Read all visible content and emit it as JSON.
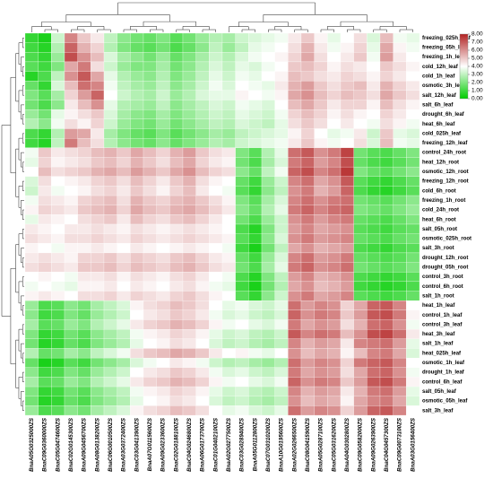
{
  "chart_data": {
    "type": "heatmap",
    "colors": [
      "#00cc00",
      "#ffffff",
      "#b22222"
    ],
    "zlim": [
      0,
      8
    ],
    "colorbar_ticks": [
      {
        "value": 0,
        "label": "0.00"
      },
      {
        "value": 1,
        "label": "1.00"
      },
      {
        "value": 2,
        "label": "2.00"
      },
      {
        "value": 3,
        "label": "3.00"
      },
      {
        "value": 4,
        "label": "4.00"
      },
      {
        "value": 5,
        "label": "5.00"
      },
      {
        "value": 6,
        "label": "6.00"
      },
      {
        "value": 7,
        "label": "7.00"
      },
      {
        "value": 8,
        "label": "8.00"
      }
    ],
    "rows": [
      "freezing_025h_leaf",
      "freezing_05h_leaf",
      "freezing_1h_leaf",
      "cold_12h_leaf",
      "cold_1h_leaf",
      "osmotic_3h_leaf",
      "salt_12h_leaf",
      "salt_6h_leaf",
      "drought_6h_leaf",
      "heat_6h_leaf",
      "cold_025h_leaf",
      "freezing_12h_leaf",
      "control_24h_root",
      "heat_12h_root",
      "osmotic_12h_root",
      "freezing_12h_root",
      "cold_6h_root",
      "freezing_1h_root",
      "cold_24h_root",
      "heat_6h_root",
      "salt_05h_root",
      "osmotic_025h_root",
      "salt_3h_root",
      "drought_12h_root",
      "drought_05h_root",
      "control_3h_root",
      "control_6h_root",
      "salt_1h_root",
      "heat_1h_leaf",
      "control_1h_leaf",
      "control_3h_leaf",
      "heat_3h_leaf",
      "salt_1h_leaf",
      "heat_025h_leaf",
      "osmotic_1h_leaf",
      "drought_1h_leaf",
      "control_6h_leaf",
      "salt_05h_leaf",
      "osmotic_05h_leaf",
      "salt_3h_leaf"
    ],
    "columns": [
      "BnaA05G0325000ZS",
      "BnaC09G0360000ZS",
      "BnaC05G0474600ZS",
      "BnaC02G0145300ZS",
      "BnaA09G0456700ZS",
      "BnaA08G0138200ZS",
      "BnaC06G0010500ZS",
      "BnaA03G0372400ZS",
      "BnaC03G0413900ZS",
      "BnaA07G0115600ZS",
      "BnaA09G0233600ZS",
      "BnaC02G0188100ZS",
      "BnaC04G0246800ZS",
      "BnaA06G0173700ZS",
      "BnaC01G0402100ZS",
      "BnaA02G0277500ZS",
      "BnaC03G0289400ZS",
      "BnaA05G0112800ZS",
      "BnaC07G0310200ZS",
      "BnaA10G0195600ZS",
      "BnaA02G0266500ZS",
      "BnaC08G0415900ZS",
      "BnaA05G0287100ZS",
      "BnaC05G0316200ZS",
      "BnaA04G0302800ZS",
      "BnaC09G0582000ZS",
      "BnaA09G0263900ZS",
      "BnaC04G0457300ZS",
      "BnaC09G0073100ZS",
      "BnaA03G0156400ZS"
    ],
    "values": [
      [
        0.8,
        0.4,
        3.2,
        6.2,
        5.0,
        4.4,
        3.0,
        2.2,
        1.8,
        1.6,
        2.0,
        1.4,
        1.8,
        2.4,
        2.8,
        2.6,
        3.2,
        3.4,
        3.6,
        3.8,
        4.4,
        5.0,
        4.2,
        3.6,
        4.0,
        4.6,
        3.4,
        5.2,
        3.8,
        3.6
      ],
      [
        1.0,
        0.6,
        2.8,
        6.8,
        5.4,
        4.8,
        2.8,
        2.0,
        1.6,
        1.4,
        1.8,
        1.2,
        1.6,
        2.2,
        3.0,
        2.4,
        3.0,
        3.6,
        3.8,
        4.0,
        4.6,
        5.4,
        4.4,
        3.8,
        4.2,
        4.8,
        3.6,
        5.6,
        4.2,
        3.8
      ],
      [
        1.2,
        0.8,
        2.4,
        7.2,
        6.0,
        5.2,
        3.4,
        2.6,
        2.2,
        1.8,
        2.4,
        1.6,
        2.0,
        2.6,
        3.2,
        2.8,
        3.4,
        3.8,
        4.0,
        4.2,
        4.8,
        5.6,
        4.6,
        4.0,
        4.4,
        5.0,
        3.8,
        5.8,
        4.4,
        4.0
      ],
      [
        1.4,
        1.0,
        2.0,
        5.6,
        6.4,
        4.6,
        3.2,
        2.4,
        2.0,
        2.0,
        2.6,
        1.8,
        2.2,
        2.8,
        3.4,
        3.0,
        3.6,
        3.4,
        3.8,
        4.0,
        5.0,
        5.2,
        4.8,
        4.2,
        4.6,
        4.4,
        4.0,
        5.0,
        4.6,
        4.2
      ],
      [
        0.6,
        1.2,
        3.0,
        6.0,
        7.0,
        5.6,
        3.6,
        2.8,
        2.4,
        2.2,
        2.8,
        2.0,
        2.4,
        3.0,
        3.6,
        3.2,
        3.8,
        3.6,
        4.0,
        4.2,
        5.2,
        5.0,
        4.6,
        4.4,
        4.8,
        4.6,
        4.2,
        4.8,
        4.4,
        4.0
      ],
      [
        1.6,
        0.8,
        3.4,
        5.2,
        6.6,
        6.2,
        3.8,
        3.0,
        2.6,
        2.4,
        3.0,
        2.2,
        2.6,
        3.2,
        3.8,
        3.4,
        4.0,
        3.8,
        3.6,
        4.4,
        5.4,
        5.8,
        5.0,
        4.6,
        5.0,
        5.2,
        4.4,
        5.4,
        4.8,
        4.4
      ],
      [
        2.0,
        1.4,
        2.6,
        4.8,
        5.8,
        6.8,
        4.0,
        3.2,
        2.8,
        2.6,
        3.2,
        2.4,
        2.8,
        3.4,
        3.6,
        3.6,
        4.2,
        4.0,
        3.8,
        4.2,
        5.6,
        6.0,
        5.2,
        4.8,
        5.2,
        5.0,
        4.6,
        5.6,
        5.0,
        4.6
      ],
      [
        1.8,
        1.2,
        2.2,
        4.4,
        5.2,
        6.0,
        3.6,
        2.8,
        2.6,
        2.4,
        3.0,
        2.2,
        2.6,
        3.0,
        3.4,
        3.2,
        3.8,
        3.6,
        3.4,
        4.0,
        5.2,
        5.6,
        5.0,
        4.4,
        4.8,
        4.8,
        4.2,
        5.2,
        4.6,
        4.2
      ],
      [
        2.4,
        1.8,
        3.6,
        4.2,
        4.6,
        5.0,
        3.4,
        2.6,
        2.2,
        2.0,
        2.6,
        2.0,
        2.4,
        2.8,
        3.2,
        3.0,
        3.6,
        3.4,
        3.2,
        3.8,
        4.8,
        5.2,
        4.8,
        4.2,
        4.6,
        4.2,
        4.0,
        4.8,
        4.4,
        4.0
      ],
      [
        2.8,
        2.2,
        3.8,
        4.6,
        4.2,
        4.8,
        3.2,
        2.4,
        2.0,
        1.8,
        2.4,
        1.8,
        2.2,
        2.6,
        3.0,
        2.8,
        3.4,
        3.2,
        3.0,
        3.6,
        4.6,
        5.0,
        4.6,
        4.0,
        4.4,
        4.0,
        3.8,
        4.6,
        4.2,
        3.8
      ],
      [
        1.2,
        0.8,
        2.8,
        5.8,
        5.6,
        4.4,
        2.6,
        2.0,
        1.6,
        1.4,
        2.0,
        1.4,
        1.8,
        2.2,
        2.6,
        2.4,
        3.0,
        3.2,
        3.4,
        3.6,
        4.2,
        4.8,
        4.0,
        3.6,
        3.8,
        4.4,
        3.2,
        5.0,
        3.6,
        3.4
      ],
      [
        1.0,
        0.6,
        3.0,
        6.4,
        5.2,
        4.6,
        2.8,
        2.2,
        1.8,
        1.6,
        2.2,
        1.6,
        2.0,
        2.4,
        2.8,
        2.6,
        3.2,
        3.4,
        3.6,
        3.8,
        4.4,
        5.0,
        4.2,
        3.8,
        4.0,
        4.6,
        3.4,
        5.2,
        3.8,
        3.6
      ],
      [
        3.8,
        5.0,
        4.4,
        4.6,
        4.8,
        5.2,
        5.4,
        5.0,
        5.6,
        5.2,
        4.8,
        5.4,
        5.8,
        5.0,
        4.6,
        4.4,
        2.0,
        1.4,
        2.8,
        3.6,
        6.6,
        7.0,
        6.0,
        6.4,
        7.4,
        1.8,
        1.4,
        1.2,
        1.6,
        2.0
      ],
      [
        3.6,
        4.8,
        4.2,
        4.4,
        4.6,
        5.0,
        5.2,
        4.8,
        5.4,
        5.0,
        4.6,
        5.2,
        5.6,
        4.8,
        4.4,
        4.2,
        1.8,
        1.2,
        2.6,
        3.4,
        6.4,
        6.8,
        5.8,
        6.2,
        7.2,
        1.6,
        1.2,
        1.0,
        1.4,
        1.8
      ],
      [
        4.0,
        5.2,
        4.6,
        4.8,
        5.0,
        5.4,
        5.6,
        5.2,
        5.8,
        5.4,
        5.0,
        5.6,
        6.0,
        5.2,
        4.8,
        4.6,
        2.2,
        1.6,
        3.0,
        3.8,
        6.8,
        7.2,
        6.2,
        6.6,
        7.6,
        2.0,
        1.6,
        1.4,
        1.8,
        2.2
      ],
      [
        3.4,
        4.6,
        4.0,
        4.2,
        4.4,
        4.8,
        5.0,
        4.6,
        5.2,
        4.8,
        4.4,
        5.0,
        5.4,
        4.6,
        4.2,
        4.0,
        1.6,
        1.0,
        2.4,
        3.2,
        6.2,
        6.6,
        5.6,
        6.0,
        7.0,
        1.4,
        1.0,
        0.8,
        1.2,
        1.6
      ],
      [
        3.2,
        4.4,
        3.8,
        4.0,
        4.2,
        4.6,
        4.8,
        4.4,
        5.0,
        4.6,
        4.2,
        4.8,
        5.2,
        4.4,
        4.0,
        3.8,
        1.4,
        0.8,
        2.2,
        3.0,
        6.0,
        6.4,
        5.4,
        5.8,
        6.8,
        1.2,
        0.8,
        0.6,
        1.0,
        1.4
      ],
      [
        3.8,
        4.6,
        4.4,
        4.2,
        4.8,
        5.0,
        5.2,
        4.6,
        5.4,
        5.0,
        4.8,
        5.2,
        5.4,
        5.0,
        4.6,
        4.2,
        2.0,
        1.4,
        2.6,
        3.4,
        6.2,
        6.6,
        6.0,
        6.4,
        6.6,
        1.8,
        1.6,
        1.4,
        1.8,
        2.2
      ],
      [
        4.2,
        4.8,
        4.6,
        4.4,
        5.0,
        5.2,
        5.4,
        4.8,
        5.6,
        5.2,
        5.0,
        5.4,
        5.6,
        5.2,
        4.8,
        4.4,
        2.2,
        1.6,
        2.8,
        3.6,
        6.4,
        6.8,
        6.2,
        6.6,
        6.8,
        2.0,
        1.8,
        1.6,
        2.0,
        2.4
      ],
      [
        3.6,
        4.4,
        4.2,
        4.0,
        4.6,
        4.8,
        5.0,
        4.4,
        5.2,
        4.8,
        4.6,
        5.0,
        5.2,
        4.8,
        4.4,
        4.0,
        1.8,
        1.2,
        2.4,
        3.2,
        6.0,
        6.4,
        5.8,
        6.2,
        6.4,
        1.6,
        1.4,
        1.2,
        1.6,
        2.0
      ],
      [
        4.4,
        4.2,
        4.0,
        4.4,
        4.4,
        4.6,
        4.4,
        4.2,
        4.6,
        4.4,
        4.2,
        4.4,
        4.6,
        4.4,
        4.2,
        4.0,
        1.2,
        0.6,
        2.0,
        3.2,
        5.8,
        6.2,
        5.6,
        5.8,
        6.0,
        1.4,
        1.2,
        1.0,
        1.4,
        1.6
      ],
      [
        4.6,
        4.4,
        4.2,
        4.6,
        4.6,
        4.8,
        4.6,
        4.4,
        4.8,
        4.6,
        4.4,
        4.6,
        4.8,
        4.6,
        4.4,
        4.2,
        1.4,
        0.8,
        2.2,
        3.4,
        6.0,
        6.4,
        5.8,
        6.0,
        6.2,
        1.6,
        1.4,
        1.2,
        1.6,
        1.8
      ],
      [
        4.2,
        4.0,
        3.8,
        4.2,
        4.2,
        4.4,
        4.2,
        4.0,
        4.4,
        4.2,
        4.0,
        4.2,
        4.4,
        4.2,
        4.0,
        3.8,
        1.0,
        0.4,
        1.8,
        3.0,
        5.6,
        6.0,
        5.4,
        5.6,
        5.8,
        1.2,
        1.0,
        0.8,
        1.2,
        1.4
      ],
      [
        4.4,
        4.6,
        4.4,
        4.2,
        4.8,
        4.8,
        5.0,
        4.6,
        5.0,
        4.8,
        4.6,
        5.0,
        5.2,
        4.8,
        4.4,
        4.2,
        1.6,
        1.0,
        2.4,
        3.4,
        6.2,
        6.6,
        5.8,
        6.0,
        6.4,
        1.6,
        1.4,
        1.2,
        1.4,
        1.8
      ],
      [
        4.6,
        4.8,
        4.6,
        4.4,
        5.0,
        5.0,
        5.2,
        4.8,
        5.2,
        5.0,
        4.8,
        5.2,
        5.4,
        5.0,
        4.6,
        4.4,
        1.8,
        1.2,
        2.6,
        3.6,
        6.4,
        6.8,
        6.0,
        6.2,
        6.6,
        1.8,
        1.6,
        1.4,
        1.6,
        2.0
      ],
      [
        4.0,
        4.2,
        4.0,
        3.8,
        4.4,
        4.4,
        4.6,
        4.2,
        4.6,
        4.4,
        4.2,
        4.6,
        4.8,
        4.4,
        4.0,
        3.8,
        1.2,
        0.6,
        2.0,
        3.0,
        5.8,
        6.2,
        5.4,
        5.6,
        6.0,
        1.2,
        1.0,
        0.8,
        1.0,
        1.4
      ],
      [
        3.8,
        4.0,
        3.8,
        3.6,
        4.2,
        4.2,
        4.4,
        4.0,
        4.4,
        4.2,
        4.0,
        4.4,
        4.6,
        4.2,
        3.8,
        3.6,
        1.0,
        0.4,
        1.8,
        2.8,
        5.6,
        6.0,
        5.2,
        5.4,
        5.8,
        1.0,
        0.8,
        0.6,
        0.8,
        1.2
      ],
      [
        4.2,
        4.4,
        4.2,
        4.0,
        4.6,
        4.6,
        4.8,
        4.4,
        4.8,
        4.6,
        4.4,
        4.8,
        5.0,
        4.6,
        4.2,
        4.0,
        1.4,
        0.8,
        2.2,
        3.2,
        6.0,
        6.4,
        5.6,
        5.8,
        6.2,
        1.4,
        1.2,
        1.0,
        1.2,
        1.6
      ],
      [
        2.4,
        1.2,
        1.4,
        2.2,
        1.8,
        2.6,
        3.0,
        3.4,
        4.2,
        4.6,
        4.8,
        5.2,
        5.0,
        4.6,
        4.0,
        3.6,
        3.8,
        3.4,
        3.2,
        3.6,
        6.6,
        5.8,
        6.2,
        6.0,
        4.8,
        5.6,
        6.8,
        7.0,
        6.2,
        4.0
      ],
      [
        2.2,
        1.0,
        1.2,
        2.0,
        1.6,
        2.4,
        2.8,
        3.2,
        4.0,
        4.4,
        4.6,
        5.0,
        4.8,
        4.4,
        3.8,
        3.4,
        3.6,
        3.2,
        3.0,
        3.4,
        6.8,
        6.0,
        6.4,
        6.2,
        5.0,
        5.8,
        7.0,
        7.2,
        6.4,
        4.2
      ],
      [
        2.6,
        1.4,
        1.6,
        2.4,
        2.0,
        2.8,
        3.2,
        3.6,
        4.4,
        4.8,
        5.0,
        5.4,
        5.2,
        4.8,
        4.2,
        3.8,
        4.0,
        3.6,
        3.4,
        3.8,
        6.4,
        5.6,
        6.0,
        5.8,
        4.6,
        5.4,
        6.6,
        6.8,
        6.0,
        3.8
      ],
      [
        2.0,
        0.8,
        1.0,
        1.8,
        1.4,
        2.2,
        2.6,
        3.0,
        3.8,
        4.2,
        4.4,
        4.8,
        4.6,
        4.2,
        3.6,
        3.2,
        3.4,
        3.0,
        2.8,
        3.2,
        7.0,
        6.2,
        6.6,
        6.4,
        5.2,
        6.0,
        7.2,
        7.4,
        6.6,
        4.4
      ],
      [
        1.8,
        0.6,
        0.8,
        1.6,
        1.2,
        2.0,
        2.4,
        2.8,
        3.6,
        4.0,
        4.2,
        4.6,
        4.4,
        4.0,
        3.4,
        3.0,
        3.2,
        2.8,
        2.6,
        3.0,
        6.2,
        5.4,
        5.8,
        5.6,
        4.4,
        6.2,
        6.4,
        6.6,
        5.8,
        3.6
      ],
      [
        2.8,
        1.6,
        1.8,
        2.6,
        2.2,
        3.0,
        3.4,
        3.8,
        4.6,
        5.0,
        5.2,
        5.6,
        5.4,
        5.0,
        4.4,
        4.0,
        4.2,
        3.8,
        3.6,
        4.0,
        6.0,
        5.2,
        5.6,
        5.4,
        4.2,
        5.2,
        6.2,
        6.4,
        5.6,
        3.4
      ],
      [
        1.6,
        0.4,
        0.6,
        1.4,
        1.0,
        1.8,
        2.2,
        2.6,
        3.4,
        3.8,
        4.0,
        4.4,
        4.2,
        3.8,
        3.2,
        2.8,
        3.0,
        2.6,
        2.4,
        2.8,
        6.6,
        5.8,
        6.2,
        6.0,
        4.8,
        6.4,
        6.8,
        7.0,
        6.2,
        4.0
      ],
      [
        2.2,
        1.0,
        1.2,
        2.0,
        1.6,
        2.4,
        2.8,
        3.2,
        4.0,
        4.4,
        4.6,
        5.0,
        4.8,
        4.4,
        3.8,
        3.4,
        3.6,
        3.2,
        3.0,
        3.4,
        6.4,
        5.6,
        6.0,
        5.8,
        4.6,
        5.6,
        6.6,
        6.8,
        6.0,
        3.8
      ],
      [
        2.6,
        1.4,
        1.6,
        2.4,
        2.0,
        2.8,
        3.2,
        3.6,
        4.4,
        4.8,
        5.0,
        5.4,
        5.2,
        4.8,
        4.2,
        3.8,
        4.0,
        3.6,
        3.4,
        3.8,
        6.8,
        6.0,
        6.4,
        6.2,
        5.0,
        5.8,
        7.0,
        7.2,
        6.4,
        4.2
      ],
      [
        2.0,
        0.8,
        1.0,
        1.8,
        1.4,
        2.2,
        2.6,
        3.0,
        3.8,
        4.2,
        4.4,
        4.8,
        4.6,
        4.2,
        3.6,
        3.2,
        3.4,
        3.0,
        2.8,
        3.2,
        6.2,
        5.4,
        5.8,
        5.6,
        4.4,
        5.4,
        6.4,
        6.6,
        5.8,
        3.6
      ],
      [
        1.8,
        0.6,
        0.8,
        1.6,
        1.2,
        2.0,
        2.4,
        2.8,
        3.6,
        4.0,
        4.2,
        4.6,
        4.4,
        4.0,
        3.4,
        3.0,
        3.2,
        2.8,
        2.6,
        3.0,
        6.0,
        5.2,
        5.6,
        5.4,
        4.2,
        5.6,
        6.2,
        6.4,
        5.6,
        3.4
      ],
      [
        2.4,
        1.2,
        1.4,
        2.2,
        1.8,
        2.6,
        3.0,
        3.4,
        4.2,
        4.6,
        4.8,
        5.2,
        5.0,
        4.6,
        4.0,
        3.6,
        3.8,
        3.4,
        3.2,
        3.6,
        6.6,
        5.8,
        6.2,
        6.0,
        4.8,
        5.8,
        6.8,
        7.0,
        6.2,
        4.0
      ]
    ]
  }
}
